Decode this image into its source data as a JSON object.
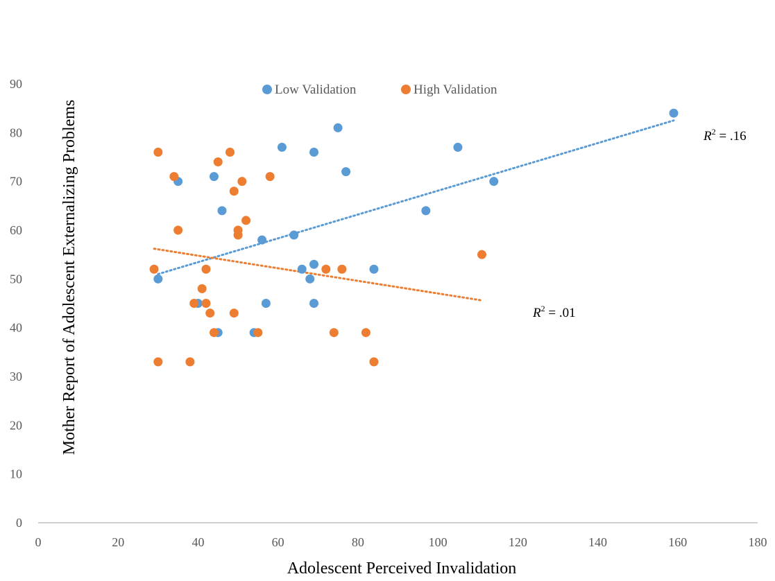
{
  "chart_data": {
    "type": "scatter",
    "xlabel": "Adolescent Perceived Invalidation",
    "ylabel": "Mother Report of Adolescent Externalizing Problems",
    "xlim": [
      0,
      180
    ],
    "ylim": [
      0,
      90
    ],
    "xticks": [
      0,
      20,
      40,
      60,
      80,
      100,
      120,
      140,
      160,
      180
    ],
    "yticks": [
      0,
      10,
      20,
      30,
      40,
      50,
      60,
      70,
      80,
      90
    ],
    "grid": false,
    "legend": "top",
    "series": [
      {
        "name": "Low Validation",
        "color": "#5B9BD5",
        "points": [
          [
            30,
            50
          ],
          [
            35,
            70
          ],
          [
            40,
            45
          ],
          [
            44,
            71
          ],
          [
            45,
            39
          ],
          [
            46,
            64
          ],
          [
            54,
            39
          ],
          [
            56,
            58
          ],
          [
            57,
            45
          ],
          [
            61,
            77
          ],
          [
            64,
            59
          ],
          [
            66,
            52
          ],
          [
            68,
            50
          ],
          [
            69,
            53
          ],
          [
            69,
            45
          ],
          [
            69,
            76
          ],
          [
            75,
            81
          ],
          [
            77,
            72
          ],
          [
            84,
            52
          ],
          [
            97,
            64
          ],
          [
            105,
            77
          ],
          [
            114,
            70
          ],
          [
            159,
            84
          ]
        ],
        "trend": {
          "x": [
            30,
            159
          ],
          "y": [
            51,
            82.5
          ],
          "r2_prefix": "R",
          "r2_exp": "2",
          "r2_value": " = .16"
        }
      },
      {
        "name": "High Validation",
        "color": "#ED7D31",
        "points": [
          [
            29,
            52
          ],
          [
            30,
            76
          ],
          [
            30,
            33
          ],
          [
            34,
            71
          ],
          [
            35,
            60
          ],
          [
            38,
            33
          ],
          [
            39,
            45
          ],
          [
            41,
            48
          ],
          [
            42,
            52
          ],
          [
            42,
            45
          ],
          [
            43,
            43
          ],
          [
            44,
            39
          ],
          [
            45,
            74
          ],
          [
            48,
            76
          ],
          [
            49,
            68
          ],
          [
            49,
            43
          ],
          [
            50,
            60
          ],
          [
            50,
            59
          ],
          [
            51,
            70
          ],
          [
            52,
            62
          ],
          [
            55,
            39
          ],
          [
            58,
            71
          ],
          [
            72,
            52
          ],
          [
            74,
            39
          ],
          [
            76,
            52
          ],
          [
            82,
            39
          ],
          [
            84,
            33
          ],
          [
            111,
            55
          ]
        ],
        "trend": {
          "x": [
            29,
            111
          ],
          "y": [
            56.2,
            45.6
          ],
          "r2_prefix": "R",
          "r2_exp": "2",
          "r2_value": " = .01"
        }
      }
    ]
  }
}
